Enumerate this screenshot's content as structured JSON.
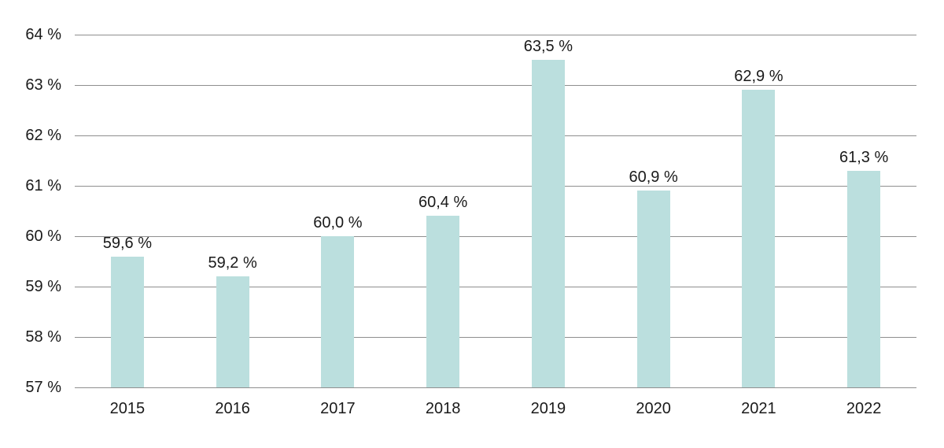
{
  "chart_data": {
    "type": "bar",
    "title": "",
    "categories": [
      "2015",
      "2016",
      "2017",
      "2018",
      "2019",
      "2020",
      "2021",
      "2022"
    ],
    "values": [
      59.6,
      59.2,
      60.0,
      60.4,
      63.5,
      60.9,
      62.9,
      61.3
    ],
    "bar_labels": [
      "59,6 %",
      "59,2 %",
      "60,0 %",
      "60,4 %",
      "63,5 %",
      "60,9 %",
      "62,9 %",
      "61,3 %"
    ],
    "y_ticks": [
      {
        "value": 64,
        "label": "64 %"
      },
      {
        "value": 63,
        "label": "63 %"
      },
      {
        "value": 62,
        "label": "62 %"
      },
      {
        "value": 61,
        "label": "61 %"
      },
      {
        "value": 60,
        "label": "60 %"
      },
      {
        "value": 59,
        "label": "59 %"
      },
      {
        "value": 58,
        "label": "58 %"
      },
      {
        "value": 57,
        "label": "57 %"
      }
    ],
    "ylim": [
      57,
      64
    ],
    "xlabel": "",
    "ylabel": "",
    "grid": "horizontal",
    "legend": "none",
    "colors": {
      "bar": "#bbdfde",
      "gridline": "#8f8f8f",
      "text": "#1a1a1a",
      "background": "#ffffff"
    }
  }
}
